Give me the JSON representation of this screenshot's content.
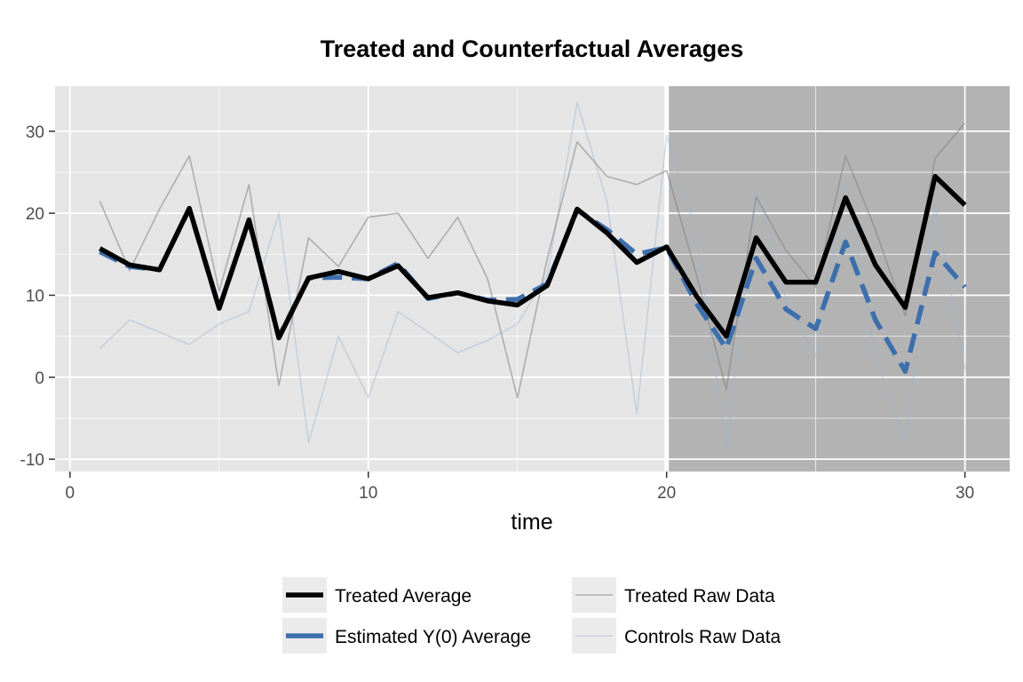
{
  "chart_data": {
    "type": "line",
    "title": "Treated and Counterfactual Averages",
    "xlabel": "time",
    "ylabel": "",
    "xlim": [
      -0.5,
      31.5
    ],
    "ylim": [
      -11.5,
      35.5
    ],
    "x_ticks": [
      0,
      10,
      20,
      30
    ],
    "x_tick_labels": [
      "0",
      "10",
      "20",
      "30"
    ],
    "y_ticks": [
      -10,
      0,
      10,
      20,
      30
    ],
    "y_tick_labels": [
      "-10",
      "0",
      "10",
      "20",
      "30"
    ],
    "grid": true,
    "treatment_period": {
      "start": 20,
      "end": 31.5
    },
    "treatment_start": 20,
    "legend_position": "bottom",
    "x": [
      1,
      2,
      3,
      4,
      5,
      6,
      7,
      8,
      9,
      10,
      11,
      12,
      13,
      14,
      15,
      16,
      17,
      18,
      19,
      20,
      21,
      22,
      23,
      24,
      25,
      26,
      27,
      28,
      29,
      30
    ],
    "series": [
      {
        "name": "Treated Average",
        "color": "#000000",
        "dash": "solid",
        "values": [
          15.7,
          13.7,
          13.1,
          20.6,
          8.4,
          19.2,
          4.8,
          12.1,
          12.9,
          12.0,
          13.6,
          9.7,
          10.3,
          9.3,
          8.8,
          11.2,
          20.5,
          17.6,
          14.0,
          15.9,
          9.9,
          5.0,
          17.0,
          11.6,
          11.6,
          21.9,
          13.7,
          8.5,
          24.5,
          21.0
        ]
      },
      {
        "name": "Estimated Y(0) Average",
        "color": "#3d6fad",
        "dash": "long-dash",
        "values": [
          15.3,
          13.5,
          13.1,
          20.5,
          8.4,
          19.1,
          4.9,
          12.1,
          12.2,
          12.0,
          13.9,
          9.6,
          10.3,
          9.4,
          9.5,
          11.4,
          20.4,
          18.0,
          15.0,
          15.8,
          9.0,
          3.5,
          14.5,
          8.3,
          5.9,
          16.5,
          7.0,
          0.7,
          15.2,
          11.0
        ]
      },
      {
        "name": "Treated Raw Data",
        "color": "#808080",
        "dash": "solid",
        "values": [
          21.5,
          13.0,
          20.5,
          27.0,
          10.5,
          23.5,
          -1.0,
          17.0,
          13.5,
          19.5,
          20.0,
          14.5,
          19.5,
          12.0,
          -2.5,
          14.5,
          28.7,
          24.5,
          23.5,
          25.2,
          12.5,
          -1.5,
          22.0,
          15.5,
          11.0,
          27.0,
          18.0,
          7.5,
          26.7,
          31.0
        ]
      },
      {
        "name": "Controls Raw Data",
        "color": "#9bb5d6",
        "dash": "solid",
        "values": [
          3.5,
          7.0,
          5.5,
          4.0,
          6.5,
          8.0,
          20.0,
          -8.0,
          5.0,
          -2.5,
          8.0,
          5.5,
          3.0,
          4.5,
          6.5,
          12.5,
          33.5,
          21.5,
          -4.5,
          29.5,
          17.5,
          -9.0,
          23.0,
          9.5,
          2.5,
          24.0,
          2.5,
          -8.0,
          21.0,
          1.0
        ]
      }
    ]
  }
}
